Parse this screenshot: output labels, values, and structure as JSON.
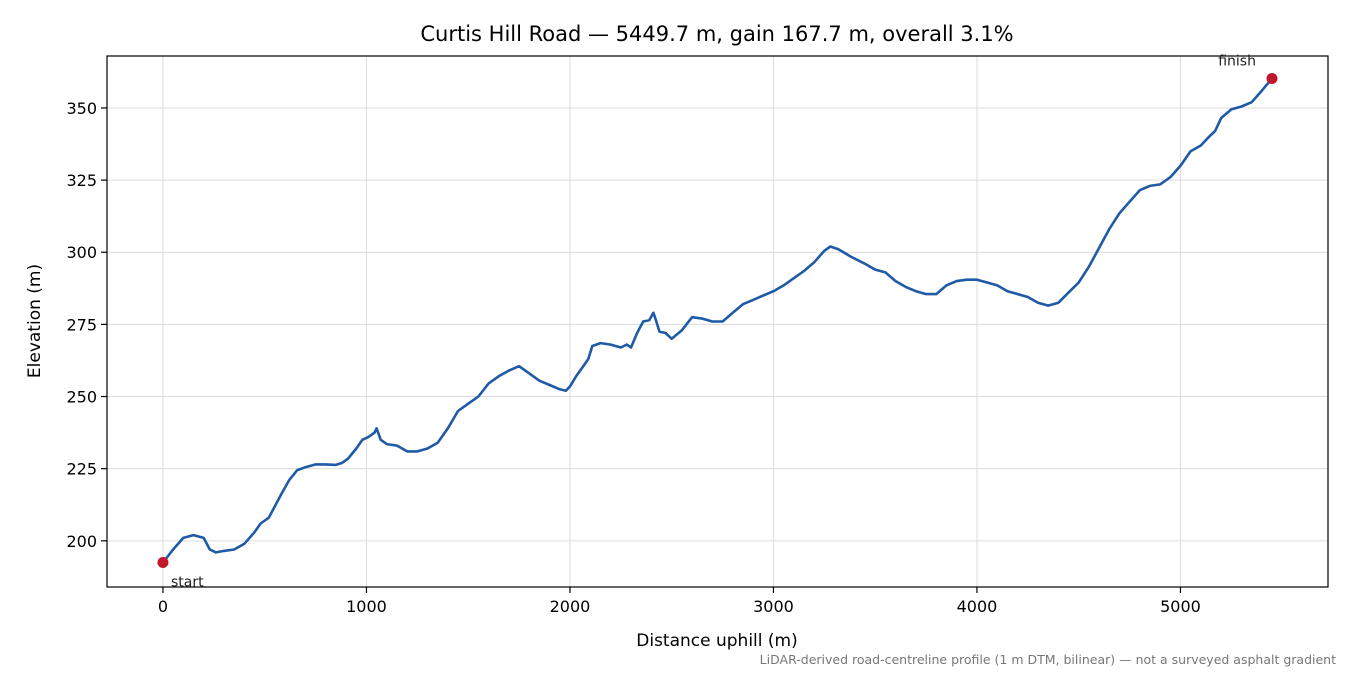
{
  "chart_data": {
    "type": "line",
    "title": "Curtis Hill Road — 5449.7 m, gain 167.7 m, overall 3.1%",
    "xlabel": "Distance uphill (m)",
    "ylabel": "Elevation (m)",
    "xlim": [
      -275,
      5725
    ],
    "ylim": [
      184,
      368
    ],
    "xticks": [
      0,
      1000,
      2000,
      3000,
      4000,
      5000
    ],
    "yticks": [
      200,
      225,
      250,
      275,
      300,
      325,
      350
    ],
    "grid": true,
    "line_color": "#1f5aa6",
    "marker_color": "#c0182a",
    "footnote": "LiDAR-derived road-centreline profile (1 m DTM, bilinear) — not a surveyed asphalt gradient",
    "annotations": [
      {
        "label": "start",
        "x": 0,
        "y": 192.5
      },
      {
        "label": "finish",
        "x": 5449.7,
        "y": 360.2
      }
    ],
    "series": [
      {
        "x": [
          0,
          50,
          100,
          150,
          200,
          230,
          260,
          300,
          350,
          400,
          450,
          480,
          520,
          550,
          580,
          620,
          660,
          700,
          750,
          800,
          850,
          880,
          910,
          950,
          980,
          1010,
          1040,
          1050,
          1070,
          1100,
          1150,
          1200,
          1250,
          1300,
          1350,
          1400,
          1450,
          1500,
          1550,
          1600,
          1650,
          1700,
          1750,
          1800,
          1850,
          1900,
          1950,
          1980,
          2000,
          2030,
          2060,
          2090,
          2110,
          2150,
          2200,
          2250,
          2280,
          2300,
          2330,
          2360,
          2390,
          2410,
          2420,
          2440,
          2470,
          2500,
          2550,
          2600,
          2650,
          2700,
          2750,
          2800,
          2850,
          2900,
          2950,
          3000,
          3050,
          3100,
          3150,
          3200,
          3250,
          3280,
          3320,
          3380,
          3450,
          3500,
          3550,
          3600,
          3650,
          3700,
          3750,
          3800,
          3850,
          3900,
          3950,
          4000,
          4050,
          4100,
          4150,
          4200,
          4250,
          4300,
          4350,
          4400,
          4450,
          4500,
          4550,
          4600,
          4650,
          4700,
          4750,
          4800,
          4850,
          4900,
          4950,
          5000,
          5050,
          5100,
          5140,
          5170,
          5200,
          5250,
          5300,
          5350,
          5400,
          5449.7
        ],
        "y": [
          192.5,
          197,
          201,
          202,
          201,
          197,
          196,
          196.5,
          197,
          199,
          203,
          206,
          208,
          212,
          216,
          221,
          224.5,
          225.5,
          226.5,
          226.5,
          226.3,
          227,
          228.5,
          232,
          235,
          236,
          237.5,
          239,
          235,
          233.5,
          233,
          231,
          231,
          232,
          234,
          239,
          245,
          247.5,
          250,
          254.5,
          257,
          259,
          260.5,
          258,
          255.5,
          254,
          252.5,
          252,
          253.5,
          257,
          260,
          263,
          267.5,
          268.5,
          268,
          267,
          268,
          267,
          272,
          276,
          276.5,
          279,
          277,
          272.5,
          272,
          270,
          273,
          277.5,
          277,
          276,
          276,
          279,
          282,
          283.5,
          285,
          286.5,
          288.5,
          291,
          293.5,
          296.5,
          300.5,
          302,
          301,
          298.5,
          296,
          294,
          293,
          290,
          288,
          286.5,
          285.5,
          285.5,
          288.5,
          290,
          290.5,
          290.5,
          289.5,
          288.5,
          286.5,
          285.5,
          284.5,
          282.5,
          281.5,
          282.5,
          286,
          289.5,
          295,
          301.5,
          308,
          313.5,
          317.5,
          321.5,
          323,
          323.5,
          326,
          330,
          335,
          337,
          340,
          342,
          346.5,
          349.5,
          350.5,
          352,
          356,
          360.2
        ]
      }
    ]
  }
}
